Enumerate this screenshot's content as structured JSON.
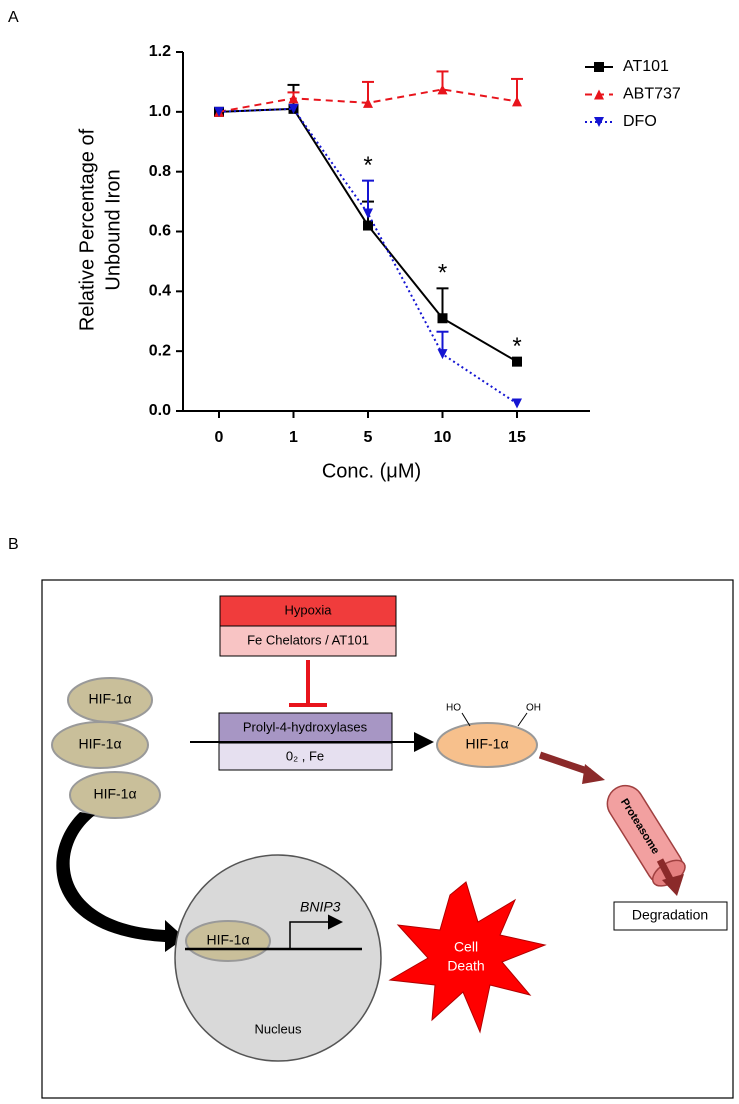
{
  "panel_labels": [
    "A",
    "B"
  ],
  "chart_data": {
    "type": "line",
    "ylabel": [
      "Relative Percentage of",
      "Unbound Iron"
    ],
    "xlabel": "Conc. (μM)",
    "categories": [
      "0",
      "1",
      "5",
      "10",
      "15"
    ],
    "ylim": [
      0,
      1.2
    ],
    "yticks": [
      {
        "value": 0,
        "label": "0.0"
      },
      0.2,
      0.4,
      0.6,
      0.8,
      {
        "value": 1,
        "label": "1.0"
      },
      1.2
    ],
    "legend": "upper right",
    "series": [
      {
        "name": "AT101",
        "color": "#000000",
        "line_style": "solid",
        "marker": "square",
        "values": [
          1.0,
          1.01,
          0.62,
          0.31,
          0.165
        ],
        "errors": [
          null,
          0.08,
          0.08,
          0.1,
          null
        ]
      },
      {
        "name": "ABT737",
        "color": "#e8141c",
        "line_style": "dashed",
        "marker": "triangle-up",
        "values": [
          1.0,
          1.045,
          1.03,
          1.075,
          1.035
        ],
        "errors": [
          null,
          0.02,
          0.07,
          0.06,
          0.075
        ]
      },
      {
        "name": "DFO",
        "color": "#1414d2",
        "line_style": "dotted",
        "marker": "triangle-down",
        "values": [
          1.0,
          1.01,
          0.66,
          0.19,
          0.025
        ],
        "errors": [
          null,
          null,
          0.11,
          0.075,
          null
        ]
      }
    ],
    "annotations": [
      {
        "text": "*",
        "category": "5"
      },
      {
        "text": "*",
        "category": "10"
      },
      {
        "text": "*",
        "category": "15"
      }
    ]
  },
  "diagram": {
    "hypoxia": "Hypoxia",
    "chelators": "Fe Chelators / AT101",
    "enzyme": "Prolyl-4-hydroxylases",
    "cofactors": "0₂ , Fe",
    "hif_left": [
      "HIF-1α",
      "HIF-1α",
      "HIF-1α"
    ],
    "hif_hydroxylated": "HIF-1α",
    "ho": "HO",
    "oh": "OH",
    "proteasome": "Proteasome",
    "degradation": "Degradation",
    "hif_nucleus": "HIF-1α",
    "gene": "BNIP3",
    "nucleus": "Nucleus",
    "cell_death": [
      "Cell",
      "Death"
    ]
  }
}
